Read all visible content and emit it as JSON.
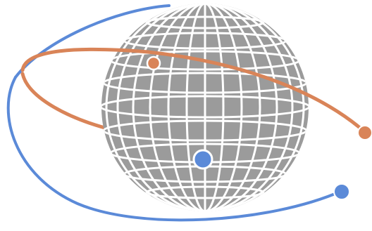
{
  "illustration": {
    "subject": "globe-with-orbits-icon",
    "colors": {
      "background": "#ffffff",
      "globe_fill": "#9b9b9b",
      "grid_lines": "#ffffff",
      "blue_orbit": "#5b8ad8",
      "orange_orbit": "#d98458",
      "blue_satellite": "#5b8ad8",
      "orange_satellite": "#d98458",
      "satellite_outline": "#ffffff"
    }
  }
}
